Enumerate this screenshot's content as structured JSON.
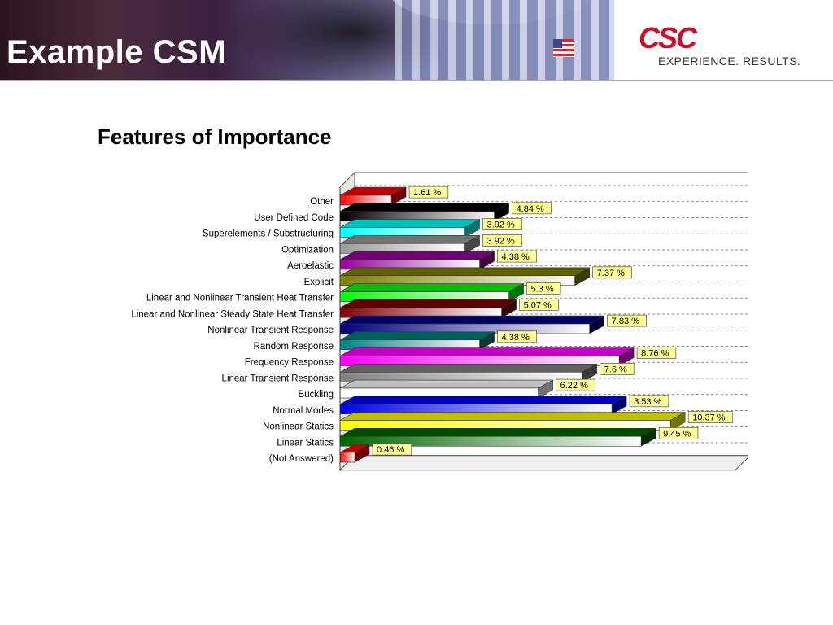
{
  "slide": {
    "title": "Example CSM",
    "logo_mark": "CSC",
    "logo_tagline": "EXPERIENCE. RESULTS.",
    "subtitle": "Features of Importance"
  },
  "colors": {
    "brand_red": "#c8102e",
    "label_box": "#ffff99"
  },
  "chart_data": {
    "type": "bar",
    "orientation": "horizontal",
    "style": "3d",
    "categories": [
      "Other",
      "User Defined Code",
      "Superelements / Substructuring",
      "Optimization",
      "Aeroelastic",
      "Explicit",
      "Linear and Nonlinear Transient Heat Transfer",
      "Linear and Nonlinear Steady State Heat Transfer",
      "Nonlinear Transient Response",
      "Random Response",
      "Frequency Response",
      "Linear Transient Response",
      "Buckling",
      "Normal Modes",
      "Nonlinear Statics",
      "Linear Statics",
      "(Not Answered)"
    ],
    "values": [
      1.61,
      4.84,
      3.92,
      3.92,
      4.38,
      7.37,
      5.3,
      5.07,
      7.83,
      4.38,
      8.76,
      7.6,
      6.22,
      8.53,
      10.37,
      9.45,
      0.46
    ],
    "labels": [
      "1.61 %",
      "4.84 %",
      "3.92 %",
      "3.92 %",
      "4.38 %",
      "7.37 %",
      "5.3 %",
      "5.07 %",
      "7.83 %",
      "4.38 %",
      "8.76 %",
      "7.6 %",
      "6.22 %",
      "8.53 %",
      "10.37 %",
      "9.45 %",
      "0.46 %"
    ],
    "bar_colors": [
      "#ff0000",
      "#000000",
      "#00ffff",
      "#999999",
      "#990099",
      "#808000",
      "#00ff00",
      "#800000",
      "#000080",
      "#008080",
      "#ff00ff",
      "#808080",
      "#ffffff",
      "#0000ff",
      "#ffff00",
      "#006600",
      "#ff0000"
    ],
    "xlim": [
      0,
      12
    ],
    "grid": true,
    "legend": "none"
  }
}
